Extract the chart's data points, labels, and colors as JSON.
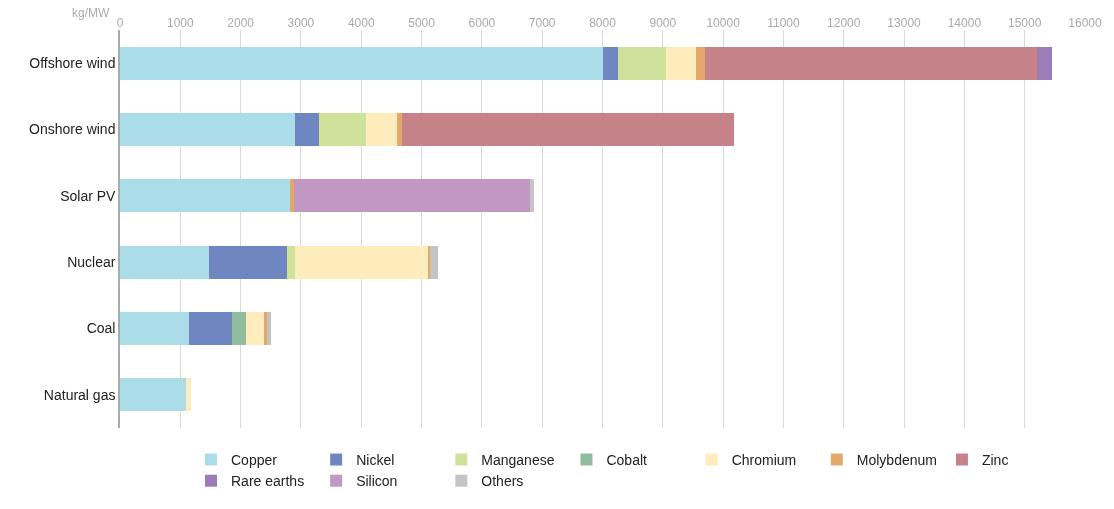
{
  "chart_data": {
    "type": "bar",
    "orientation": "horizontal",
    "stacked": true,
    "xlabel": "kg/MW",
    "categories": [
      "Offshore wind",
      "Onshore wind",
      "Solar PV",
      "Nuclear",
      "Coal",
      "Natural gas"
    ],
    "series": [
      {
        "name": "Copper",
        "color": "#abdde9",
        "values": [
          8000,
          2900,
          2820,
          1480,
          1150,
          1100
        ]
      },
      {
        "name": "Nickel",
        "color": "#6f86c0",
        "values": [
          250,
          400,
          0,
          1290,
          715,
          0
        ]
      },
      {
        "name": "Manganese",
        "color": "#cfe29c",
        "values": [
          800,
          780,
          0,
          135,
          0,
          0
        ]
      },
      {
        "name": "Cobalt",
        "color": "#90bb9c",
        "values": [
          0,
          0,
          0,
          0,
          220,
          0
        ]
      },
      {
        "name": "Chromium",
        "color": "#ffecbc",
        "values": [
          500,
          510,
          0,
          2195,
          300,
          85
        ]
      },
      {
        "name": "Molybdenum",
        "color": "#e3a96b",
        "values": [
          150,
          80,
          60,
          45,
          50,
          0
        ]
      },
      {
        "name": "Zinc",
        "color": "#c58389",
        "values": [
          5500,
          5510,
          0,
          0,
          0,
          0
        ]
      },
      {
        "name": "Rare earths",
        "color": "#9c7db9",
        "values": [
          260,
          0,
          0,
          0,
          0,
          0
        ]
      },
      {
        "name": "Silicon",
        "color": "#c298c2",
        "values": [
          0,
          0,
          3920,
          0,
          0,
          0
        ]
      },
      {
        "name": "Others",
        "color": "#c4c4c4",
        "values": [
          0,
          0,
          60,
          135,
          65,
          0
        ]
      }
    ],
    "xlim": [
      0,
      16000
    ],
    "xticks": [
      0,
      1000,
      2000,
      3000,
      4000,
      5000,
      6000,
      7000,
      8000,
      9000,
      10000,
      11000,
      12000,
      13000,
      14000,
      15000,
      16000
    ],
    "grid": "x",
    "legend": "bottom"
  }
}
